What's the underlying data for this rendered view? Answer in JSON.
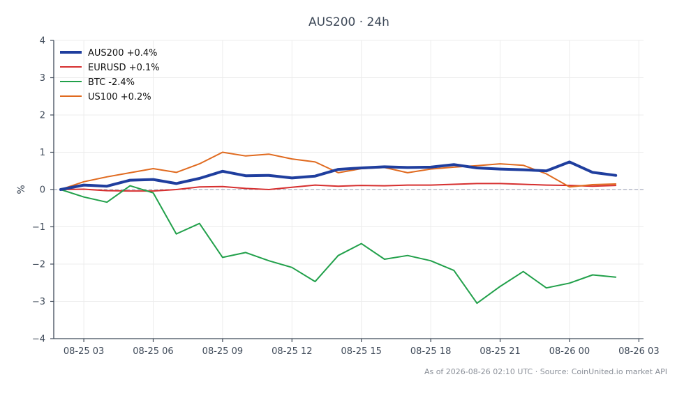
{
  "chart_data": {
    "type": "line",
    "title": "AUS200 · 24h",
    "xlabel": "",
    "ylabel": "%",
    "ylim": [
      -4,
      4
    ],
    "xlim": [
      "2026-08-25 01:42",
      "2026-08-26 03:12"
    ],
    "yticks": [
      "4",
      "3",
      "2",
      "1",
      "0",
      "−1",
      "−2",
      "−3",
      "−4"
    ],
    "ytick_values": [
      4,
      3,
      2,
      1,
      0,
      -1,
      -2,
      -3,
      -4
    ],
    "xticks": [
      "08-25 03",
      "08-25 06",
      "08-25 09",
      "08-25 12",
      "08-25 15",
      "08-25 18",
      "08-25 21",
      "08-26 00",
      "08-26 03"
    ],
    "xtick_values": [
      "2026-08-25 03:00",
      "2026-08-25 06:00",
      "2026-08-25 09:00",
      "2026-08-25 12:00",
      "2026-08-25 15:00",
      "2026-08-25 18:00",
      "2026-08-25 21:00",
      "2026-08-26 00:00",
      "2026-08-26 03:00"
    ],
    "zero_line": true,
    "grid": true,
    "legend_position": "top-left",
    "x": [
      "2026-08-25 02:00",
      "2026-08-25 03:00",
      "2026-08-25 04:00",
      "2026-08-25 05:00",
      "2026-08-25 06:00",
      "2026-08-25 07:00",
      "2026-08-25 08:00",
      "2026-08-25 09:00",
      "2026-08-25 10:00",
      "2026-08-25 11:00",
      "2026-08-25 12:00",
      "2026-08-25 13:00",
      "2026-08-25 14:00",
      "2026-08-25 15:00",
      "2026-08-25 16:00",
      "2026-08-25 17:00",
      "2026-08-25 18:00",
      "2026-08-25 19:00",
      "2026-08-25 20:00",
      "2026-08-25 21:00",
      "2026-08-25 22:00",
      "2026-08-25 23:00",
      "2026-08-26 00:00",
      "2026-08-26 01:00",
      "2026-08-26 02:00"
    ],
    "series": [
      {
        "name": "AUS200 +0.4%",
        "color": "#1f3e9e",
        "width": 4,
        "values": [
          0,
          0.12,
          0.09,
          0.25,
          0.27,
          0.16,
          0.3,
          0.49,
          0.37,
          0.38,
          0.31,
          0.36,
          0.54,
          0.58,
          0.61,
          0.59,
          0.6,
          0.67,
          0.58,
          0.55,
          0.53,
          0.5,
          0.74,
          0.46,
          0.38
        ]
      },
      {
        "name": "EURUSD +0.1%",
        "color": "#d62f2f",
        "width": 2,
        "values": [
          0,
          0.01,
          -0.03,
          -0.04,
          -0.04,
          0,
          0.07,
          0.08,
          0.03,
          0,
          0.06,
          0.12,
          0.09,
          0.11,
          0.1,
          0.12,
          0.12,
          0.14,
          0.16,
          0.16,
          0.14,
          0.12,
          0.11,
          0.09,
          0.11
        ]
      },
      {
        "name": "BTC -2.4%",
        "color": "#21a04a",
        "width": 2,
        "values": [
          0,
          -0.2,
          -0.34,
          0.1,
          -0.09,
          -1.19,
          -0.91,
          -1.82,
          -1.69,
          -1.91,
          -2.09,
          -2.47,
          -1.77,
          -1.45,
          -1.87,
          -1.77,
          -1.91,
          -2.17,
          -3.05,
          -2.6,
          -2.2,
          -2.64,
          -2.51,
          -2.29,
          -2.35
        ]
      },
      {
        "name": "US100 +0.2%",
        "color": "#e06a1f",
        "width": 2,
        "values": [
          0,
          0.21,
          0.34,
          0.45,
          0.56,
          0.46,
          0.69,
          1.0,
          0.9,
          0.95,
          0.82,
          0.74,
          0.45,
          0.56,
          0.59,
          0.45,
          0.55,
          0.6,
          0.64,
          0.69,
          0.65,
          0.42,
          0.07,
          0.13,
          0.15
        ]
      }
    ]
  },
  "footer": "As of 2026-08-26 02:10 UTC · Source: CoinUnited.io market API"
}
